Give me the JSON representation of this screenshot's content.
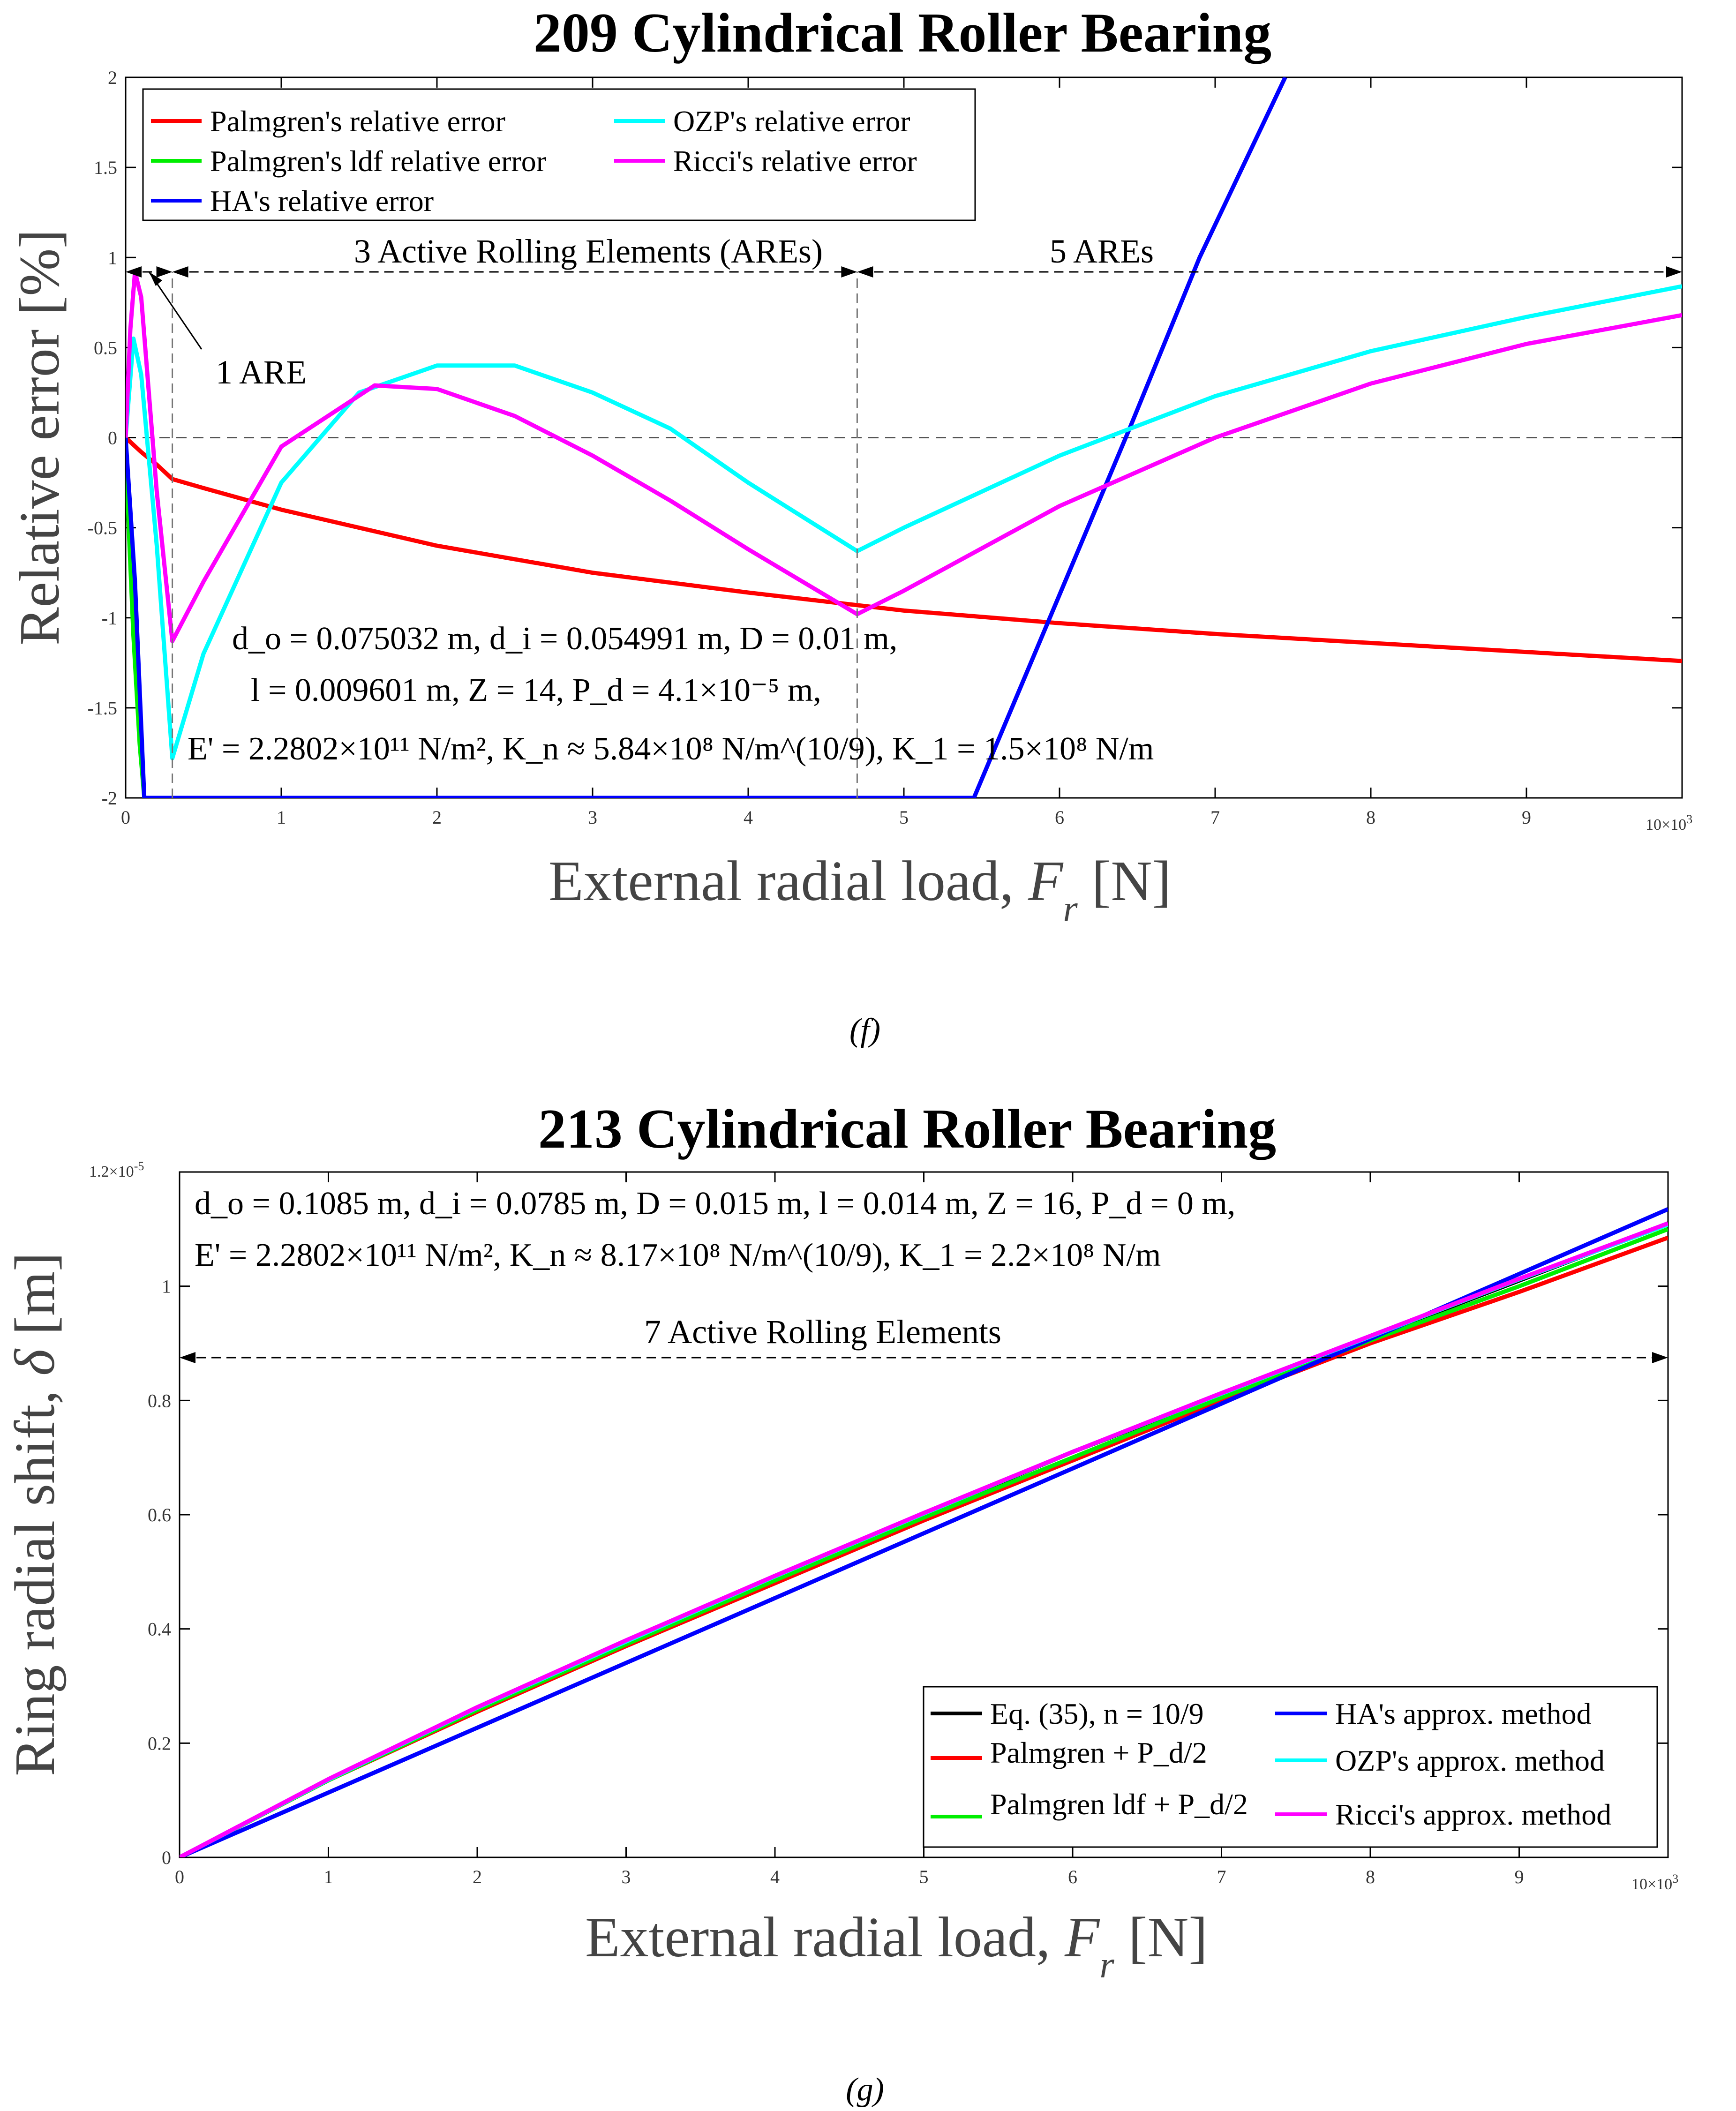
{
  "chart_data": [
    {
      "panel": "(f)",
      "type": "line",
      "title": "209 Cylindrical Roller Bearing",
      "xlabel": "External radial load, F_r [N]",
      "ylabel": "Relative error [%]",
      "xlim": [
        0,
        10
      ],
      "ylim": [
        -2,
        2
      ],
      "x_multiplier": "10×10³",
      "xticks": [
        0,
        1,
        2,
        3,
        4,
        5,
        6,
        7,
        8,
        9,
        10
      ],
      "yticks": [
        -2,
        -1.5,
        -1,
        -0.5,
        0,
        0.5,
        1,
        1.5,
        2
      ],
      "xtick_labels": [
        "0",
        "1",
        "2",
        "3",
        "4",
        "5",
        "6",
        "7",
        "8",
        "9",
        "10×10³"
      ],
      "ytick_labels": [
        "-2",
        "-1.5",
        "-1",
        "-0.5",
        "0",
        "0.5",
        "1",
        "1.5",
        "2"
      ],
      "legend": [
        "Palmgren's relative error",
        "Palmgren's ldf relative error",
        "HA's relative error",
        "OZP's relative error",
        "Ricci's relative error"
      ],
      "series": [
        {
          "name": "Palmgren's relative error",
          "color": "#ff0000",
          "x": [
            0,
            0.1,
            0.2,
            0.3,
            0.5,
            1,
            2,
            3,
            4,
            4.7,
            5,
            6,
            7,
            8,
            9,
            10
          ],
          "y": [
            0,
            -0.08,
            -0.15,
            -0.23,
            -0.28,
            -0.4,
            -0.6,
            -0.75,
            -0.86,
            -0.93,
            -0.96,
            -1.03,
            -1.09,
            -1.14,
            -1.19,
            -1.24
          ]
        },
        {
          "name": "Palmgren's ldf relative error",
          "color": "#00ee00",
          "x": [
            0,
            0.02,
            0.05,
            0.09,
            0.12
          ],
          "y": [
            0,
            -0.5,
            -1.1,
            -1.7,
            -2
          ]
        },
        {
          "name": "HA's relative error",
          "color": "#0000ff",
          "x": [
            0,
            0.03,
            0.06,
            0.1,
            0.12,
            5.45,
            6.45,
            6.9,
            7.45
          ],
          "y": [
            0,
            -0.4,
            -0.8,
            -1.6,
            -2,
            -2,
            0.05,
            1,
            2
          ]
        },
        {
          "name": "OZP's relative error",
          "color": "#00ffff",
          "x": [
            0,
            0.05,
            0.1,
            0.2,
            0.3,
            0.5,
            1,
            1.5,
            2,
            2.5,
            3,
            3.5,
            4,
            4.7,
            5,
            6,
            7,
            8,
            9,
            10
          ],
          "y": [
            0,
            0.55,
            0.35,
            -0.6,
            -1.78,
            -1.2,
            -0.25,
            0.25,
            0.4,
            0.4,
            0.25,
            0.05,
            -0.25,
            -0.63,
            -0.5,
            -0.1,
            0.23,
            0.48,
            0.67,
            0.84
          ]
        },
        {
          "name": "Ricci's relative error",
          "color": "#ff00ff",
          "x": [
            0,
            0.03,
            0.06,
            0.1,
            0.2,
            0.3,
            0.5,
            1,
            1.6,
            2,
            2.5,
            3,
            3.5,
            4,
            4.7,
            5,
            6,
            7,
            8,
            9,
            10
          ],
          "y": [
            0,
            0.6,
            0.92,
            0.78,
            -0.3,
            -1.13,
            -0.8,
            -0.05,
            0.29,
            0.27,
            0.12,
            -0.1,
            -0.35,
            -0.62,
            -0.98,
            -0.85,
            -0.38,
            0,
            0.3,
            0.52,
            0.68
          ]
        }
      ],
      "regions": [
        {
          "label": "1 ARE",
          "x_from": 0,
          "x_to": 0.3
        },
        {
          "label": "3 Active Rolling Elements (AREs)",
          "x_from": 0.3,
          "x_to": 4.7
        },
        {
          "label": "5 AREs",
          "x_from": 4.7,
          "x_to": 10
        }
      ],
      "region_y": 0.92,
      "parameters": {
        "do": "d_o = 0.075032 m",
        "di": "d_i = 0.054991 m",
        "D": "D = 0.01 m",
        "l": "l = 0.009601 m",
        "Z": "Z = 14",
        "Pd": "P_d = 4.1×10⁻⁵ m",
        "E": "E' = 2.2802×10¹¹ N/m²",
        "Kn": "K_n ≈ 5.84×10⁸ N/m^(10/9)",
        "K1": "K_1 = 1.5×10⁸ N/m"
      }
    },
    {
      "panel": "(g)",
      "type": "line",
      "title": "213 Cylindrical Roller Bearing",
      "xlabel": "External radial load, F_r [N]",
      "ylabel": "Ring radial shift, δ [m]",
      "xlim": [
        0,
        10
      ],
      "ylim": [
        0,
        1.2
      ],
      "x_multiplier": "10×10³",
      "y_multiplier": "1.2×10⁻⁵",
      "xticks": [
        0,
        1,
        2,
        3,
        4,
        5,
        6,
        7,
        8,
        9,
        10
      ],
      "yticks": [
        0,
        0.2,
        0.4,
        0.6,
        0.8,
        1,
        1.2
      ],
      "xtick_labels": [
        "0",
        "1",
        "2",
        "3",
        "4",
        "5",
        "6",
        "7",
        "8",
        "9",
        "10×10³"
      ],
      "ytick_labels": [
        "0",
        "0.2",
        "0.4",
        "0.6",
        "0.8",
        "1",
        "1.2×10⁻⁵"
      ],
      "legend": [
        "Eq. (35), n = 10/9",
        "Palmgren + P_d/2",
        "Palmgren ldf + P_d/2",
        "HA's approx. method",
        "OZP's approx. method",
        "Ricci's approx. method"
      ],
      "series": [
        {
          "name": "Eq. (35), n = 10/9",
          "color": "#000000",
          "x": [
            0,
            1,
            2,
            3,
            4,
            5,
            6,
            7,
            8,
            9,
            10
          ],
          "y": [
            0,
            0.135,
            0.26,
            0.375,
            0.49,
            0.6,
            0.71,
            0.81,
            0.91,
            1.01,
            1.11
          ]
        },
        {
          "name": "Palmgren + P_d/2",
          "color": "#ff0000",
          "x": [
            0,
            1,
            2,
            3,
            4,
            5,
            6,
            7,
            8,
            9,
            10
          ],
          "y": [
            0,
            0.135,
            0.255,
            0.37,
            0.48,
            0.59,
            0.695,
            0.8,
            0.9,
            0.99,
            1.085
          ]
        },
        {
          "name": "Palmgren ldf + P_d/2",
          "color": "#00ee00",
          "x": [
            0,
            1,
            2,
            3,
            4,
            5,
            6,
            7,
            8,
            9,
            10
          ],
          "y": [
            0,
            0.135,
            0.258,
            0.373,
            0.485,
            0.595,
            0.7,
            0.805,
            0.905,
            1.0,
            1.1
          ]
        },
        {
          "name": "HA's approx. method",
          "color": "#0000ff",
          "x": [
            0,
            10
          ],
          "y": [
            0,
            1.135
          ]
        },
        {
          "name": "OZP's approx. method",
          "color": "#00ffff",
          "x": [
            0,
            1,
            2,
            3,
            4,
            5,
            6,
            7,
            8,
            9,
            10
          ],
          "y": [
            0,
            0.136,
            0.262,
            0.378,
            0.492,
            0.602,
            0.71,
            0.812,
            0.912,
            1.012,
            1.108
          ]
        },
        {
          "name": "Ricci's approx. method",
          "color": "#ff00ff",
          "x": [
            0,
            1,
            2,
            3,
            4,
            5,
            6,
            7,
            8,
            9,
            10
          ],
          "y": [
            0,
            0.137,
            0.263,
            0.38,
            0.493,
            0.603,
            0.71,
            0.813,
            0.913,
            1.013,
            1.11
          ]
        }
      ],
      "regions": [
        {
          "label": "7 Active Rolling Elements",
          "x_from": 0,
          "x_to": 10
        }
      ],
      "region_y": 0.875,
      "parameters": {
        "do": "d_o = 0.1085 m",
        "di": "d_i = 0.0785 m",
        "D": "D = 0.015 m",
        "l": "l = 0.014 m",
        "Z": "Z = 16",
        "Pd": "P_d = 0 m",
        "E": "E' = 2.2802×10¹¹ N/m²",
        "Kn": "K_n ≈ 8.17×10⁸ N/m^(10/9)",
        "K1": "K_1 = 2.2×10⁸ N/m"
      }
    }
  ],
  "captions": {
    "f": "(f)",
    "g": "(g)"
  },
  "labels": {
    "xlabel_main": "External radial load, ",
    "xlabel_var": "F",
    "xlabel_sub": "r",
    "xlabel_unit": "[N]",
    "ylabel_f": "Relative error [%]",
    "ylabel_g_main": "Ring radial shift, ",
    "ylabel_g_var": "δ",
    "ylabel_g_unit": " [m]",
    "x_multiplier": "10×10",
    "x_multiplier_exp": "3",
    "y_multiplier_g": "1.2×10",
    "y_multiplier_g_exp": "-5"
  }
}
